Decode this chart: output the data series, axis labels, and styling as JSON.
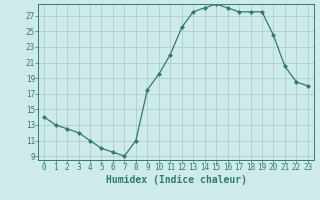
{
  "x": [
    0,
    1,
    2,
    3,
    4,
    5,
    6,
    7,
    8,
    9,
    10,
    11,
    12,
    13,
    14,
    15,
    16,
    17,
    18,
    19,
    20,
    21,
    22,
    23
  ],
  "y": [
    14,
    13,
    12.5,
    12,
    11,
    10,
    9.5,
    9,
    11,
    17.5,
    19.5,
    22,
    25.5,
    27.5,
    28,
    28.5,
    28,
    27.5,
    27.5,
    27.5,
    24.5,
    20.5,
    18.5,
    18
  ],
  "line_color": "#2d7d6e",
  "marker": "D",
  "marker_size": 2,
  "bg_color": "#ceeaea",
  "grid_color": "#aacfcf",
  "xlabel": "Humidex (Indice chaleur)",
  "xlim": [
    -0.5,
    23.5
  ],
  "ylim": [
    8.5,
    28.5
  ],
  "yticks": [
    9,
    11,
    13,
    15,
    17,
    19,
    21,
    23,
    25,
    27
  ],
  "xticks": [
    0,
    1,
    2,
    3,
    4,
    5,
    6,
    7,
    8,
    9,
    10,
    11,
    12,
    13,
    14,
    15,
    16,
    17,
    18,
    19,
    20,
    21,
    22,
    23
  ],
  "tick_label_fontsize": 5.5,
  "xlabel_fontsize": 7.0
}
